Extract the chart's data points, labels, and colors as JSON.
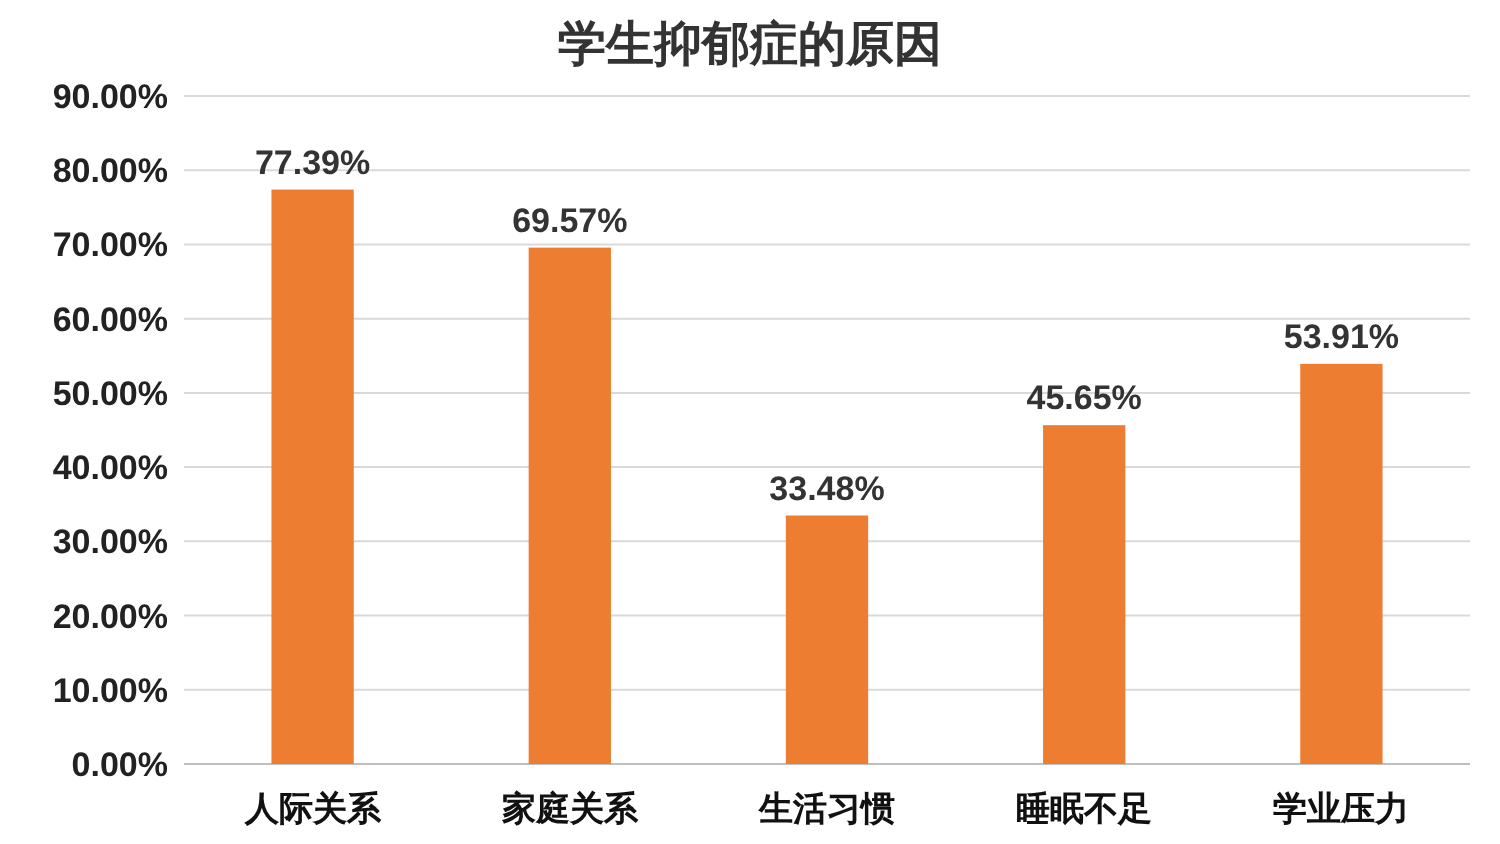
{
  "chart_data": {
    "type": "bar",
    "title": "学生抑郁症的原因",
    "categories": [
      "人际关系",
      "家庭关系",
      "生活习惯",
      "睡眠不足",
      "学业压力"
    ],
    "values": [
      77.39,
      69.57,
      33.48,
      45.65,
      53.91
    ],
    "value_labels": [
      "77.39%",
      "69.57%",
      "33.48%",
      "45.65%",
      "53.91%"
    ],
    "color": "#ed7d31",
    "ylim": [
      0,
      90
    ],
    "yticks": [
      {
        "value": 0,
        "label": "0.00%"
      },
      {
        "value": 10,
        "label": "10.00%"
      },
      {
        "value": 20,
        "label": "20.00%"
      },
      {
        "value": 30,
        "label": "30.00%"
      },
      {
        "value": 40,
        "label": "40.00%"
      },
      {
        "value": 50,
        "label": "50.00%"
      },
      {
        "value": 60,
        "label": "60.00%"
      },
      {
        "value": 70,
        "label": "70.00%"
      },
      {
        "value": 80,
        "label": "80.00%"
      },
      {
        "value": 90,
        "label": "90.00%"
      }
    ],
    "grid": "y"
  }
}
